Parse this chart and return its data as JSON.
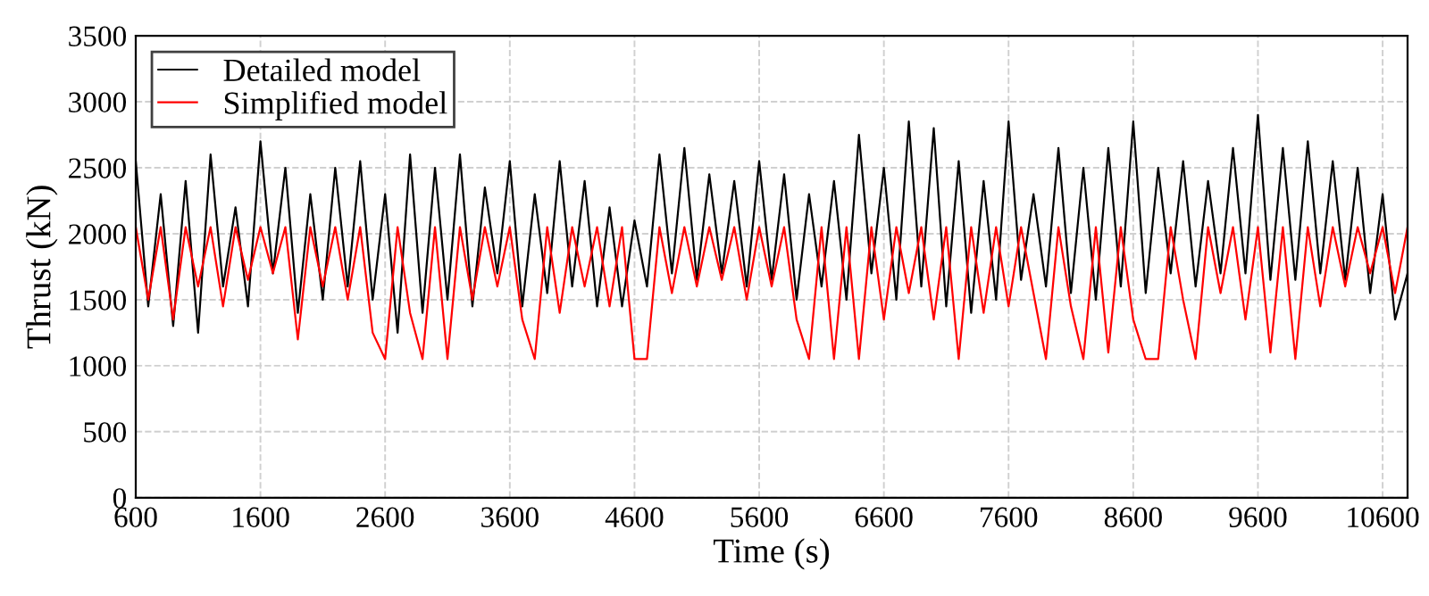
{
  "chart_data": {
    "type": "line",
    "xlabel": "Time (s)",
    "ylabel": "Thrust (kN)",
    "x": [
      600,
      700,
      800,
      900,
      1000,
      1100,
      1200,
      1300,
      1400,
      1500,
      1600,
      1700,
      1800,
      1900,
      2000,
      2100,
      2200,
      2300,
      2400,
      2500,
      2600,
      2700,
      2800,
      2900,
      3000,
      3100,
      3200,
      3300,
      3400,
      3500,
      3600,
      3700,
      3800,
      3900,
      4000,
      4100,
      4200,
      4300,
      4400,
      4500,
      4600,
      4700,
      4800,
      4900,
      5000,
      5100,
      5200,
      5300,
      5400,
      5500,
      5600,
      5700,
      5800,
      5900,
      6000,
      6100,
      6200,
      6300,
      6400,
      6500,
      6600,
      6700,
      6800,
      6900,
      7000,
      7100,
      7200,
      7300,
      7400,
      7500,
      7600,
      7700,
      7800,
      7900,
      8000,
      8100,
      8200,
      8300,
      8400,
      8500,
      8600,
      8700,
      8800,
      8900,
      9000,
      9100,
      9200,
      9300,
      9400,
      9500,
      9600,
      9700,
      9800,
      9900,
      10000,
      10100,
      10200,
      10300,
      10400,
      10500,
      10600,
      10700,
      10800
    ],
    "series": [
      {
        "name": "Detailed model",
        "color": "#000000",
        "values": [
          2550,
          1450,
          2300,
          1300,
          2400,
          1250,
          2600,
          1600,
          2200,
          1450,
          2700,
          1700,
          2500,
          1400,
          2300,
          1500,
          2500,
          1600,
          2550,
          1500,
          2300,
          1250,
          2600,
          1400,
          2500,
          1500,
          2600,
          1450,
          2350,
          1700,
          2550,
          1450,
          2300,
          1550,
          2550,
          1600,
          2400,
          1450,
          2200,
          1450,
          2100,
          1600,
          2600,
          1700,
          2650,
          1650,
          2450,
          1700,
          2400,
          1600,
          2550,
          1650,
          2450,
          1500,
          2300,
          1600,
          2400,
          1500,
          2750,
          1700,
          2500,
          1500,
          2850,
          1600,
          2800,
          1450,
          2550,
          1400,
          2400,
          1500,
          2850,
          1650,
          2300,
          1600,
          2650,
          1550,
          2500,
          1500,
          2650,
          1600,
          2850,
          1550,
          2500,
          1700,
          2550,
          1600,
          2400,
          1700,
          2650,
          1700,
          2900,
          1650,
          2650,
          1650,
          2700,
          1700,
          2550,
          1650,
          2500,
          1550,
          2300,
          1350,
          1700
        ]
      },
      {
        "name": "Simplified model",
        "color": "#ff0000",
        "values": [
          2050,
          1500,
          2050,
          1350,
          2050,
          1600,
          2050,
          1450,
          2050,
          1650,
          2050,
          1700,
          2050,
          1200,
          2050,
          1600,
          2050,
          1500,
          2050,
          1250,
          1050,
          2050,
          1400,
          1050,
          2050,
          1050,
          2050,
          1500,
          2050,
          1600,
          2050,
          1350,
          1050,
          2050,
          1400,
          2050,
          1600,
          2050,
          1450,
          2050,
          1050,
          1050,
          2050,
          1550,
          2050,
          1600,
          2050,
          1650,
          2050,
          1500,
          2050,
          1600,
          2050,
          1350,
          1050,
          2050,
          1050,
          2050,
          1050,
          2050,
          1350,
          2050,
          1550,
          2050,
          1350,
          2050,
          1050,
          2050,
          1400,
          2050,
          1450,
          2050,
          1550,
          1050,
          2050,
          1450,
          1050,
          2050,
          1100,
          2050,
          1350,
          1050,
          1050,
          2050,
          1500,
          1050,
          2050,
          1550,
          2050,
          1350,
          2050,
          1100,
          2050,
          1050,
          2050,
          1450,
          2050,
          1600,
          2050,
          1700,
          2050,
          1550,
          2050
        ]
      }
    ],
    "xlim": [
      600,
      10800
    ],
    "xticks": [
      600,
      1600,
      2600,
      3600,
      4600,
      5600,
      6600,
      7600,
      8600,
      9600,
      10600
    ],
    "ylim": [
      0,
      3500
    ],
    "yticks": [
      0,
      500,
      1000,
      1500,
      2000,
      2500,
      3000,
      3500
    ],
    "grid": true,
    "legend": "top left",
    "line_style": "solid",
    "marker": "none"
  }
}
